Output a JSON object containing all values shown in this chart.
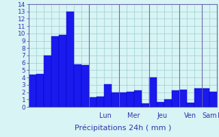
{
  "bar_values": [
    4.4,
    4.5,
    7.0,
    9.6,
    9.8,
    13.0,
    5.8,
    5.7,
    1.3,
    1.4,
    3.1,
    2.0,
    2.0,
    2.1,
    2.2,
    0.5,
    4.0,
    0.7,
    1.0,
    2.2,
    2.3,
    0.6,
    2.5,
    2.5,
    2.1
  ],
  "day_labels": [
    "Lun",
    "Mer",
    "Jeu",
    "Ven",
    "Sam",
    "D"
  ],
  "day_tick_positions": [
    7.5,
    11.5,
    15.5,
    19.5,
    22.5,
    24.5
  ],
  "day_label_centers": [
    9.75,
    13.5,
    17.25,
    21.0,
    23.5,
    25.0
  ],
  "xlabel": "Précipitations 24h ( mm )",
  "ylim": [
    0,
    14
  ],
  "yticks": [
    0,
    1,
    2,
    3,
    4,
    5,
    6,
    7,
    8,
    9,
    10,
    11,
    12,
    13,
    14
  ],
  "bar_color": "#1a1aee",
  "bar_edge_color": "#0000bb",
  "background_color": "#d8f4f4",
  "grid_color": "#99cccc",
  "axis_color": "#6666aa",
  "text_color": "#3333aa",
  "xlabel_fontsize": 8,
  "tick_fontsize": 6.5,
  "day_label_fontsize": 7
}
